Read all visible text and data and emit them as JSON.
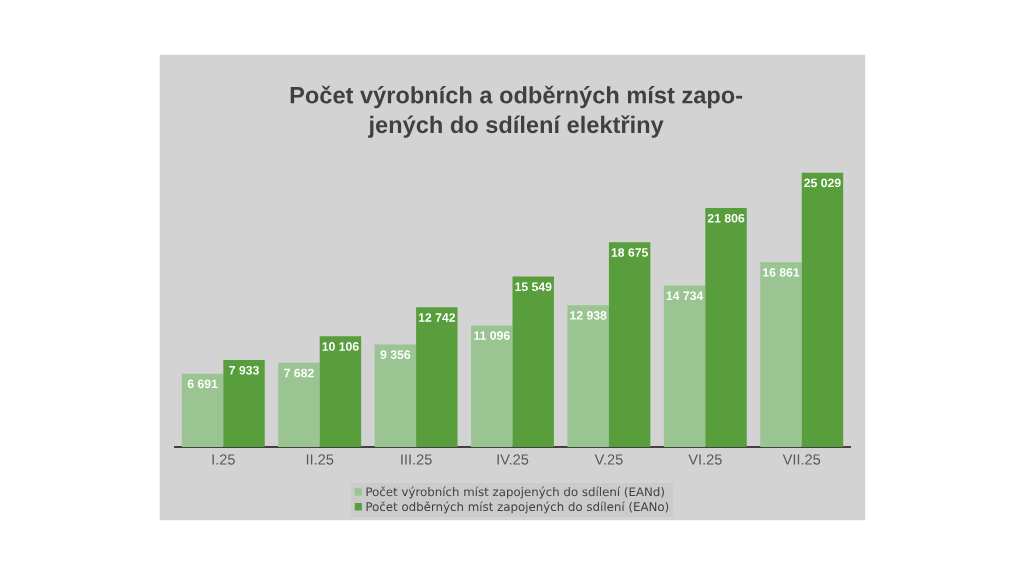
{
  "chart_data": {
    "type": "bar",
    "title": "Počet výrobních a odběrných míst zapo-\njených do sdílení elektřiny",
    "categories": [
      "I.25",
      "II.25",
      "III.25",
      "IV.25",
      "V.25",
      "VI.25",
      "VII.25"
    ],
    "series": [
      {
        "name": "Počet výrobních míst zapojených do sdílení (EANd)",
        "color": "#9ac492",
        "values": [
          6691,
          7682,
          9356,
          11096,
          12938,
          14734,
          16861
        ],
        "value_labels": [
          "6 691",
          "7 682",
          "9 356",
          "11 096",
          "12 938",
          "14 734",
          "16 861"
        ]
      },
      {
        "name": "Počet odběrných míst zapojených do sdílení (EANo)",
        "color": "#589e3d",
        "values": [
          7933,
          10106,
          12742,
          15549,
          18675,
          21806,
          25029
        ],
        "value_labels": [
          "7 933",
          "10 106",
          "12 742",
          "15 549",
          "18 675",
          "21 806",
          "25 029"
        ]
      }
    ],
    "legend": "bottom",
    "tick_labels": "x"
  }
}
